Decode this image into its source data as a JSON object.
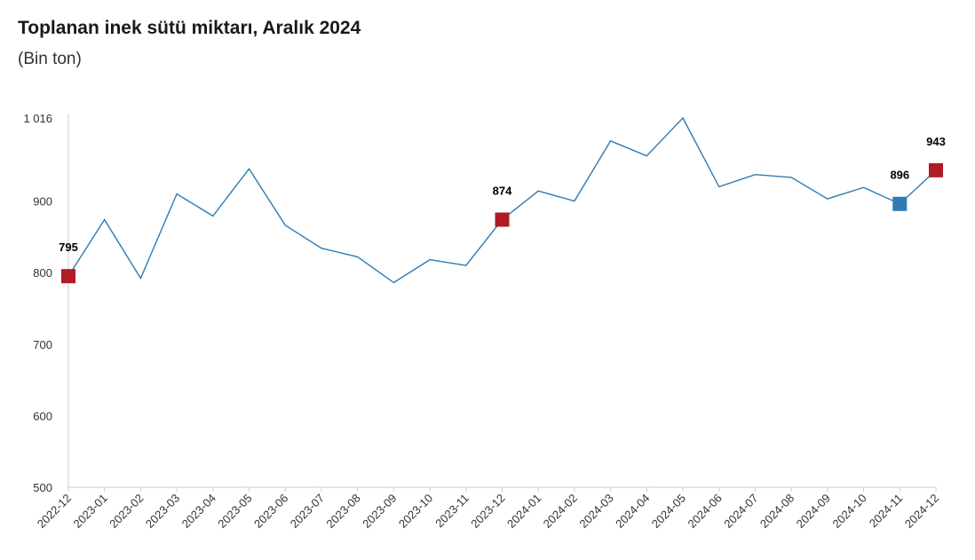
{
  "header": {
    "title": "Toplanan inek sütü miktarı, Aralık 2024",
    "subtitle": "(Bin ton)"
  },
  "chart_data": {
    "type": "line",
    "title": "Toplanan inek sütü miktarı, Aralık 2024",
    "subtitle": "(Bin ton)",
    "xlabel": "",
    "ylabel": "",
    "ylim": [
      500,
      1016
    ],
    "yticks": [
      500,
      600,
      700,
      800,
      900,
      1016
    ],
    "ytick_labels": [
      "500",
      "600",
      "700",
      "800",
      "900",
      "1 016"
    ],
    "grid": false,
    "legend": "none",
    "categories": [
      "2022-12",
      "2023-01",
      "2023-02",
      "2023-03",
      "2023-04",
      "2023-05",
      "2023-06",
      "2023-07",
      "2023-08",
      "2023-09",
      "2023-10",
      "2023-11",
      "2023-12",
      "2024-01",
      "2024-02",
      "2024-03",
      "2024-04",
      "2024-05",
      "2024-06",
      "2024-07",
      "2024-08",
      "2024-09",
      "2024-10",
      "2024-11",
      "2024-12"
    ],
    "series": [
      {
        "values": [
          795,
          874,
          792,
          910,
          879,
          945,
          866,
          834,
          822,
          786,
          818,
          810,
          874,
          914,
          900,
          984,
          963,
          1016,
          920,
          937,
          933,
          903,
          919,
          896,
          943
        ],
        "color": "#2e7bb4"
      }
    ],
    "highlights": [
      {
        "index": 0,
        "label": "795",
        "color": "#b01c21"
      },
      {
        "index": 12,
        "label": "874",
        "color": "#b01c21"
      },
      {
        "index": 23,
        "label": "896",
        "color": "#2e7bb4"
      },
      {
        "index": 24,
        "label": "943",
        "color": "#b01c21"
      }
    ]
  }
}
